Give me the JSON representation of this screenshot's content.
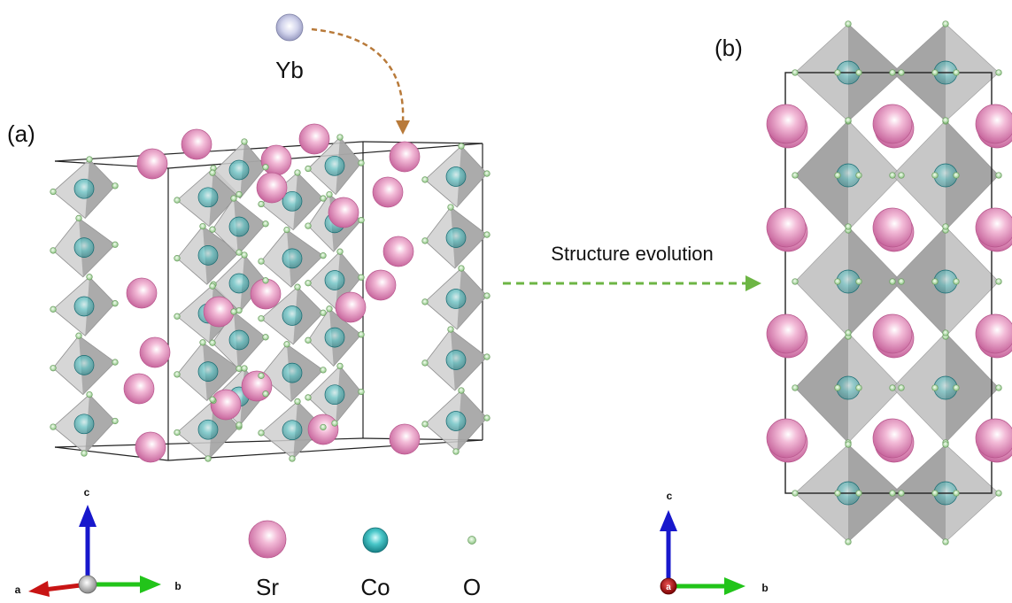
{
  "panels": {
    "a": {
      "label": "(a)"
    },
    "b": {
      "label": "(b)"
    }
  },
  "dopant": {
    "label": "Yb",
    "color": "#b7bbdc",
    "arrow_color": "#b87a3a"
  },
  "transition": {
    "label": "Structure evolution",
    "arrow_color": "#6db544"
  },
  "legend": [
    {
      "label": "Sr",
      "color": "#e291bd"
    },
    {
      "label": "Co",
      "color": "#1fb3b8"
    },
    {
      "label": "O",
      "color": "#a6d69a"
    }
  ],
  "axes_a": {
    "x": "a",
    "y": "b",
    "z": "c"
  },
  "axes_b": {
    "x": "a",
    "y": "b",
    "z": "c"
  },
  "colors": {
    "octahedron": "#c9c9c9",
    "octahedron_dark": "#9a9a9a",
    "cell_edge": "#222222",
    "axis_red": "#c81414",
    "axis_green": "#22c41a",
    "axis_blue": "#1818cc"
  }
}
